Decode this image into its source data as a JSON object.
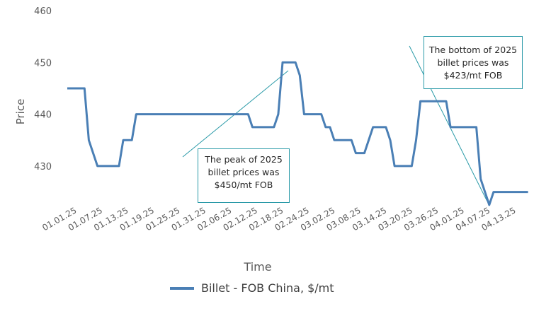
{
  "chart_data": {
    "type": "line",
    "title": "",
    "xlabel": "Time",
    "ylabel": "Price",
    "ylim": [
      420,
      460
    ],
    "y_ticks": [
      "460",
      "450",
      "440",
      "430"
    ],
    "x_tick_labels": [
      "01.01.25",
      "01.07.25",
      "01.13.25",
      "01.19.25",
      "01.25.25",
      "01.31.25",
      "02.06.25",
      "02.12.25",
      "02.18.25",
      "02.24.25",
      "03.02.25",
      "03.08.25",
      "03.14.25",
      "03.20.25",
      "03.26.25",
      "04.01.25",
      "04.07.25",
      "04.13.25"
    ],
    "grid": false,
    "legend_position": "bottom",
    "series": [
      {
        "name": "Billet - FOB China, $/mt",
        "color": "#4a7fb5",
        "points": [
          [
            "01.01.25",
            445
          ],
          [
            "01.05.25",
            445
          ],
          [
            "01.06.25",
            435
          ],
          [
            "01.08.25",
            430
          ],
          [
            "01.13.25",
            430
          ],
          [
            "01.14.25",
            435
          ],
          [
            "01.16.25",
            435
          ],
          [
            "01.17.25",
            440
          ],
          [
            "02.12.25",
            440
          ],
          [
            "02.13.25",
            437.5
          ],
          [
            "02.18.25",
            437.5
          ],
          [
            "02.19.25",
            440
          ],
          [
            "02.20.25",
            450
          ],
          [
            "02.23.25",
            450
          ],
          [
            "02.24.25",
            447.5
          ],
          [
            "02.25.25",
            440
          ],
          [
            "03.01.25",
            440
          ],
          [
            "03.02.25",
            437.5
          ],
          [
            "03.03.25",
            437.5
          ],
          [
            "03.04.25",
            435
          ],
          [
            "03.08.25",
            435
          ],
          [
            "03.09.25",
            432.5
          ],
          [
            "03.11.25",
            432.5
          ],
          [
            "03.13.25",
            437.5
          ],
          [
            "03.16.25",
            437.5
          ],
          [
            "03.17.25",
            435
          ],
          [
            "03.18.25",
            430
          ],
          [
            "03.22.25",
            430
          ],
          [
            "03.23.25",
            435
          ],
          [
            "03.24.25",
            442.5
          ],
          [
            "03.30.25",
            442.5
          ],
          [
            "03.31.25",
            437.5
          ],
          [
            "04.06.25",
            437.5
          ],
          [
            "04.07.25",
            427.5
          ],
          [
            "04.09.25",
            422.5
          ],
          [
            "04.10.25",
            425
          ],
          [
            "04.18.25",
            425
          ]
        ]
      }
    ],
    "annotations": [
      {
        "text": "The peak of 2025 billet prices was $450/mt FOB"
      },
      {
        "text": "The bottom of 2025 billet prices was $423/mt FOB"
      }
    ]
  },
  "legend": {
    "label": "Billet - FOB China, $/mt"
  },
  "callouts": {
    "peak": "The peak of 2025 billet prices was $450/mt FOB",
    "bottom": "The bottom of 2025 billet prices was $423/mt FOB"
  }
}
